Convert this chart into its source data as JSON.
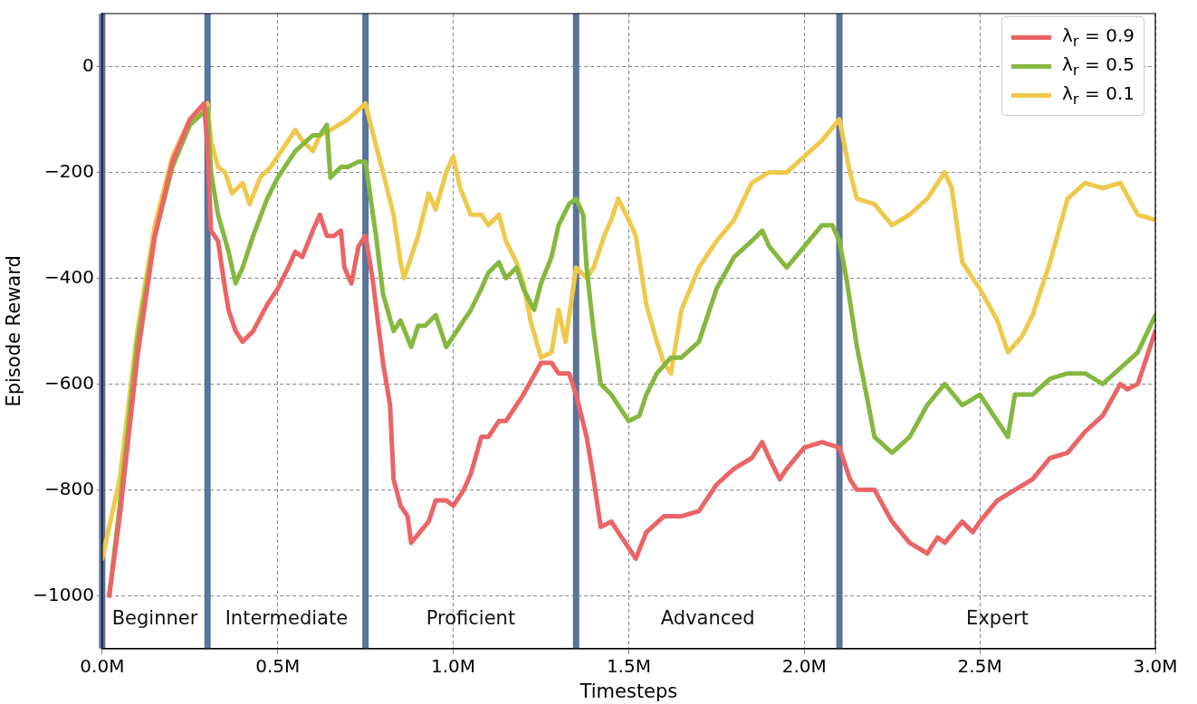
{
  "chart_data": {
    "type": "line",
    "xlabel": "Timesteps",
    "ylabel": "Episode Reward",
    "xlim": [
      0,
      3
    ],
    "xticks": [
      {
        "value": 0,
        "label": "0.0M"
      },
      {
        "value": 0.5,
        "label": "0.5M"
      },
      {
        "value": 1,
        "label": "1.0M"
      },
      {
        "value": 1.5,
        "label": "1.5M"
      },
      {
        "value": 2,
        "label": "2.0M"
      },
      {
        "value": 2.5,
        "label": "2.5M"
      },
      {
        "value": 3,
        "label": "3.0M"
      }
    ],
    "ylim": [
      -1100,
      100
    ],
    "yticks": [
      {
        "value": -1000,
        "label": "−1000"
      },
      {
        "value": -800,
        "label": "−800"
      },
      {
        "value": -600,
        "label": "−600"
      },
      {
        "value": -400,
        "label": "−400"
      },
      {
        "value": -200,
        "label": "−200"
      },
      0
    ],
    "grid": true,
    "legend": "top right",
    "line_style": "solid",
    "marker": "none",
    "series": [
      {
        "name": "λ$_{r}$ = 0.9",
        "color": "#eb6466",
        "x": [
          0.02,
          0.05,
          0.1,
          0.15,
          0.2,
          0.25,
          0.29,
          0.3,
          0.31,
          0.33,
          0.35,
          0.36,
          0.38,
          0.4,
          0.43,
          0.47,
          0.5,
          0.53,
          0.55,
          0.57,
          0.6,
          0.62,
          0.64,
          0.66,
          0.68,
          0.69,
          0.71,
          0.73,
          0.75,
          0.77,
          0.8,
          0.82,
          0.83,
          0.85,
          0.87,
          0.88,
          0.93,
          0.95,
          0.98,
          1.0,
          1.03,
          1.05,
          1.08,
          1.1,
          1.13,
          1.15,
          1.2,
          1.25,
          1.28,
          1.3,
          1.33,
          1.35,
          1.38,
          1.4,
          1.42,
          1.45,
          1.47,
          1.5,
          1.52,
          1.55,
          1.6,
          1.65,
          1.7,
          1.75,
          1.8,
          1.85,
          1.88,
          1.9,
          1.93,
          1.95,
          2.0,
          2.05,
          2.1,
          2.13,
          2.15,
          2.2,
          2.25,
          2.3,
          2.35,
          2.38,
          2.4,
          2.45,
          2.48,
          2.5,
          2.55,
          2.6,
          2.65,
          2.7,
          2.75,
          2.8,
          2.85,
          2.9,
          2.92,
          2.95,
          3.0
        ],
        "values": [
          -1000,
          -850,
          -550,
          -320,
          -180,
          -100,
          -70,
          -150,
          -310,
          -330,
          -420,
          -460,
          -500,
          -520,
          -500,
          -450,
          -420,
          -380,
          -350,
          -360,
          -310,
          -280,
          -320,
          -320,
          -310,
          -380,
          -410,
          -340,
          -320,
          -400,
          -560,
          -640,
          -780,
          -830,
          -850,
          -900,
          -860,
          -820,
          -820,
          -830,
          -800,
          -770,
          -700,
          -700,
          -670,
          -670,
          -620,
          -560,
          -560,
          -580,
          -580,
          -620,
          -700,
          -780,
          -870,
          -860,
          -880,
          -910,
          -930,
          -880,
          -850,
          -850,
          -840,
          -790,
          -760,
          -740,
          -710,
          -740,
          -780,
          -760,
          -720,
          -710,
          -720,
          -780,
          -800,
          -800,
          -860,
          -900,
          -920,
          -890,
          -900,
          -860,
          -880,
          -860,
          -820,
          -800,
          -780,
          -740,
          -730,
          -690,
          -660,
          -600,
          -610,
          -600,
          -500
        ]
      },
      {
        "name": "λ$_{r}$ = 0.5",
        "color": "#85b83f",
        "x": [
          0.02,
          0.05,
          0.1,
          0.15,
          0.2,
          0.25,
          0.3,
          0.31,
          0.33,
          0.36,
          0.38,
          0.4,
          0.43,
          0.47,
          0.5,
          0.55,
          0.6,
          0.62,
          0.64,
          0.65,
          0.68,
          0.7,
          0.73,
          0.75,
          0.78,
          0.8,
          0.83,
          0.85,
          0.88,
          0.9,
          0.92,
          0.95,
          0.98,
          1.0,
          1.03,
          1.05,
          1.08,
          1.1,
          1.13,
          1.15,
          1.18,
          1.2,
          1.23,
          1.25,
          1.28,
          1.3,
          1.33,
          1.35,
          1.37,
          1.38,
          1.4,
          1.42,
          1.45,
          1.48,
          1.5,
          1.53,
          1.55,
          1.58,
          1.62,
          1.65,
          1.7,
          1.75,
          1.8,
          1.85,
          1.88,
          1.9,
          1.95,
          2.0,
          2.05,
          2.08,
          2.1,
          2.12,
          2.15,
          2.18,
          2.2,
          2.25,
          2.3,
          2.35,
          2.4,
          2.45,
          2.5,
          2.55,
          2.58,
          2.6,
          2.65,
          2.7,
          2.75,
          2.8,
          2.85,
          2.9,
          2.95,
          3.0
        ],
        "values": [
          -1000,
          -830,
          -520,
          -320,
          -190,
          -110,
          -80,
          -200,
          -280,
          -350,
          -410,
          -380,
          -320,
          -250,
          -210,
          -160,
          -130,
          -130,
          -110,
          -210,
          -190,
          -190,
          -180,
          -180,
          -320,
          -430,
          -500,
          -480,
          -530,
          -490,
          -490,
          -470,
          -530,
          -510,
          -480,
          -460,
          -420,
          -390,
          -370,
          -400,
          -380,
          -420,
          -460,
          -410,
          -360,
          -300,
          -260,
          -250,
          -280,
          -380,
          -500,
          -600,
          -620,
          -650,
          -670,
          -660,
          -620,
          -580,
          -550,
          -550,
          -520,
          -420,
          -360,
          -330,
          -310,
          -340,
          -380,
          -340,
          -300,
          -300,
          -330,
          -400,
          -530,
          -630,
          -700,
          -730,
          -700,
          -640,
          -600,
          -640,
          -620,
          -670,
          -700,
          -620,
          -620,
          -590,
          -580,
          -580,
          -600,
          -570,
          -540,
          -470
        ]
      },
      {
        "name": "λ$_{r}$ = 0.1",
        "color": "#efc94c",
        "x": [
          0.0,
          0.05,
          0.1,
          0.15,
          0.2,
          0.25,
          0.3,
          0.31,
          0.33,
          0.35,
          0.37,
          0.4,
          0.42,
          0.45,
          0.48,
          0.5,
          0.53,
          0.55,
          0.57,
          0.6,
          0.62,
          0.65,
          0.7,
          0.75,
          0.78,
          0.8,
          0.83,
          0.85,
          0.86,
          0.9,
          0.93,
          0.95,
          0.98,
          1.0,
          1.02,
          1.05,
          1.08,
          1.1,
          1.13,
          1.15,
          1.18,
          1.2,
          1.22,
          1.25,
          1.28,
          1.3,
          1.32,
          1.35,
          1.38,
          1.4,
          1.43,
          1.45,
          1.47,
          1.5,
          1.52,
          1.55,
          1.58,
          1.6,
          1.62,
          1.65,
          1.7,
          1.75,
          1.8,
          1.85,
          1.9,
          1.95,
          2.0,
          2.05,
          2.1,
          2.13,
          2.15,
          2.2,
          2.25,
          2.3,
          2.35,
          2.4,
          2.42,
          2.45,
          2.5,
          2.55,
          2.58,
          2.62,
          2.65,
          2.7,
          2.75,
          2.8,
          2.85,
          2.9,
          2.95,
          3.0
        ],
        "values": [
          -930,
          -780,
          -500,
          -300,
          -170,
          -100,
          -70,
          -140,
          -190,
          -200,
          -240,
          -220,
          -260,
          -210,
          -190,
          -170,
          -140,
          -120,
          -140,
          -160,
          -130,
          -120,
          -100,
          -70,
          -150,
          -200,
          -280,
          -370,
          -400,
          -320,
          -240,
          -270,
          -200,
          -170,
          -230,
          -280,
          -280,
          -300,
          -280,
          -330,
          -370,
          -410,
          -480,
          -550,
          -540,
          -460,
          -520,
          -380,
          -400,
          -380,
          -320,
          -290,
          -250,
          -290,
          -320,
          -450,
          -520,
          -560,
          -580,
          -460,
          -380,
          -330,
          -290,
          -220,
          -200,
          -200,
          -170,
          -140,
          -100,
          -200,
          -250,
          -260,
          -300,
          -280,
          -250,
          -200,
          -230,
          -370,
          -420,
          -480,
          -540,
          -510,
          -470,
          -370,
          -250,
          -220,
          -230,
          -220,
          -280,
          -290
        ]
      }
    ],
    "ref_lines": [
      {
        "axis": "x",
        "value": 0,
        "color": "#5b7399"
      },
      {
        "axis": "x",
        "value": 0.3,
        "color": "#5b7399"
      },
      {
        "axis": "x",
        "value": 0.75,
        "color": "#5b7399"
      },
      {
        "axis": "x",
        "value": 1.35,
        "color": "#5b7399"
      },
      {
        "axis": "x",
        "value": 2.1,
        "color": "#5b7399"
      }
    ],
    "annotations": [
      "Beginner",
      "Intermediate",
      "Proficient",
      "Advanced",
      "Expert"
    ]
  }
}
